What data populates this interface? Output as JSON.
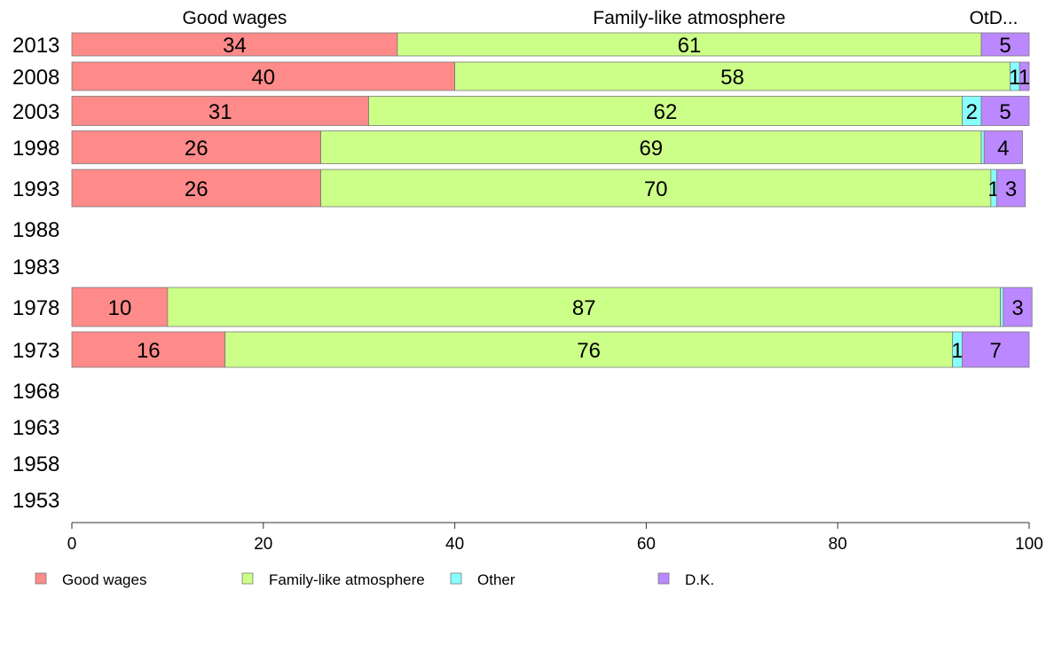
{
  "chart_data": {
    "type": "bar",
    "orientation": "horizontal",
    "stacked": true,
    "categories": [
      "2013",
      "2008",
      "2003",
      "1998",
      "1993",
      "1988",
      "1983",
      "1978",
      "1973",
      "1968",
      "1963",
      "1958",
      "1953"
    ],
    "series": [
      {
        "name": "Good wages",
        "color": "#ff8a8a",
        "values": [
          34,
          40,
          31,
          26,
          26,
          null,
          null,
          10,
          16,
          null,
          null,
          null,
          null
        ],
        "labels": [
          "34",
          "40",
          "31",
          "26",
          "26",
          "",
          "",
          "10",
          "16",
          "",
          "",
          "",
          ""
        ]
      },
      {
        "name": "Family-like atmosphere",
        "color": "#ccff88",
        "values": [
          61,
          58,
          62,
          69,
          70,
          null,
          null,
          87,
          76,
          null,
          null,
          null,
          null
        ],
        "labels": [
          "61",
          "58",
          "62",
          "69",
          "70",
          "",
          "",
          "87",
          "76",
          "",
          "",
          "",
          ""
        ]
      },
      {
        "name": "Other",
        "color": "#88ffff",
        "values": [
          0,
          1,
          2,
          0.3,
          0.6,
          null,
          null,
          0.3,
          1,
          null,
          null,
          null,
          null
        ],
        "labels": [
          "",
          "1",
          "2",
          "",
          "1",
          "",
          "",
          "",
          "1",
          "",
          "",
          "",
          ""
        ]
      },
      {
        "name": "D.K.",
        "color": "#bb88ff",
        "values": [
          5,
          1,
          5,
          4,
          3,
          null,
          null,
          3,
          7,
          null,
          null,
          null,
          null
        ],
        "labels": [
          "5",
          "1",
          "5",
          "4",
          "3",
          "",
          "",
          "3",
          "7",
          "",
          "",
          "",
          ""
        ]
      }
    ],
    "top_labels": [
      "Good wages",
      "Family-like atmosphere",
      "OtD..."
    ],
    "xlim": [
      0,
      100
    ],
    "xticks": [
      "0",
      "20",
      "40",
      "60",
      "80",
      "100"
    ],
    "grid": false,
    "legend_position": "bottom-left",
    "title": "",
    "xlabel": "",
    "ylabel": ""
  }
}
